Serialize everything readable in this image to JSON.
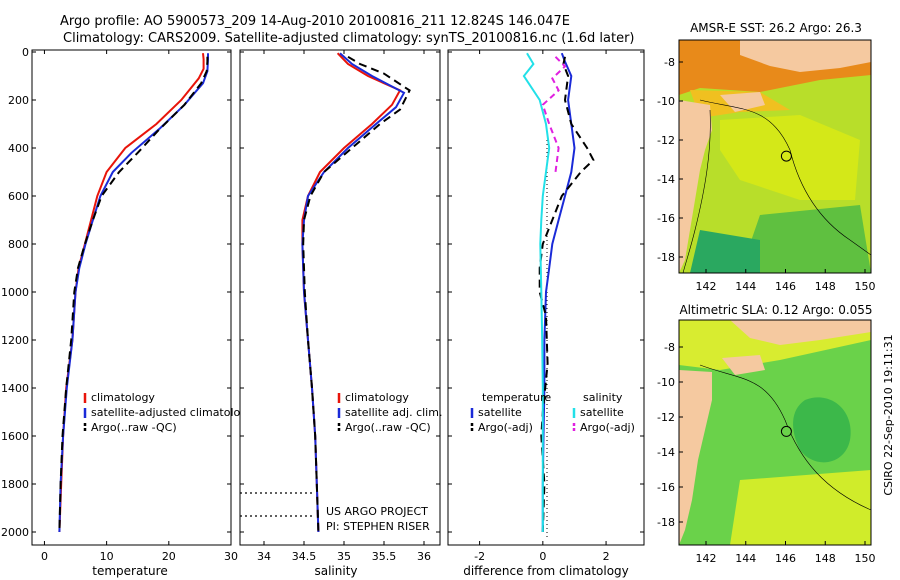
{
  "header": {
    "line1": "Argo profile: AO 5900573_209 14-Aug-2010 20100816_211 12.824S 146.047E",
    "line2": "Climatology: CARS2009. Satellite-adjusted climatology: synTS_20100816.nc (1.6d later)"
  },
  "colors": {
    "climatology": "#e8140a",
    "satellite": "#1a2ad8",
    "argo": "#000000",
    "sal_satellite": "#22e0e8",
    "sal_argo": "#e020e0",
    "land": "#f5c9a0"
  },
  "chart_data": [
    {
      "type": "line",
      "name": "temperature-profile",
      "xlabel": "temperature",
      "ylabel": "",
      "xlim": [
        -2,
        30
      ],
      "ylim": [
        2050,
        0
      ],
      "xticks": [
        0,
        10,
        20,
        30
      ],
      "yticks": [
        0,
        200,
        400,
        600,
        800,
        1000,
        1200,
        1400,
        1600,
        1800,
        2000
      ],
      "legend": [
        "climatology",
        "satellite-adjusted climatology",
        "Argo(..raw -QC)"
      ],
      "series": [
        {
          "name": "climatology",
          "color": "#e8140a",
          "dash": "",
          "points": [
            [
              25.5,
              5
            ],
            [
              25.6,
              30
            ],
            [
              25.6,
              70
            ],
            [
              24.8,
              110
            ],
            [
              22,
              200
            ],
            [
              18,
              300
            ],
            [
              13,
              400
            ],
            [
              10,
              500
            ],
            [
              8.5,
              600
            ],
            [
              7.5,
              700
            ],
            [
              6.5,
              800
            ],
            [
              5.5,
              900
            ],
            [
              5,
              1000
            ],
            [
              4.5,
              1200
            ],
            [
              3.5,
              1400
            ],
            [
              3.0,
              1600
            ],
            [
              2.7,
              1800
            ],
            [
              2.4,
              2000
            ]
          ]
        },
        {
          "name": "satellite-adjusted climatology",
          "color": "#1a2ad8",
          "dash": "",
          "points": [
            [
              26.3,
              5
            ],
            [
              26.3,
              30
            ],
            [
              26.2,
              80
            ],
            [
              25.5,
              130
            ],
            [
              22.5,
              220
            ],
            [
              18.5,
              320
            ],
            [
              14,
              420
            ],
            [
              11,
              500
            ],
            [
              9,
              600
            ],
            [
              7.8,
              700
            ],
            [
              6.6,
              800
            ],
            [
              5.6,
              900
            ],
            [
              5,
              1000
            ],
            [
              4.5,
              1200
            ],
            [
              3.6,
              1400
            ],
            [
              3.0,
              1600
            ],
            [
              2.6,
              1800
            ],
            [
              2.4,
              2000
            ]
          ]
        },
        {
          "name": "Argo(..raw -QC)",
          "color": "#000000",
          "dash": "8,5",
          "points": [
            [
              26.2,
              20
            ],
            [
              26.2,
              40
            ],
            [
              26.1,
              80
            ],
            [
              25.2,
              130
            ],
            [
              22.5,
              220
            ],
            [
              18.2,
              330
            ],
            [
              15,
              420
            ],
            [
              12,
              500
            ],
            [
              9.2,
              600
            ],
            [
              7.8,
              700
            ],
            [
              6.5,
              800
            ],
            [
              5.4,
              900
            ],
            [
              4.8,
              1000
            ],
            [
              4.3,
              1200
            ],
            [
              3.5,
              1400
            ],
            [
              2.9,
              1600
            ],
            [
              2.6,
              1800
            ],
            [
              2.4,
              2000
            ]
          ]
        }
      ]
    },
    {
      "type": "line",
      "name": "salinity-profile",
      "xlabel": "salinity",
      "xlim": [
        33.7,
        36.2
      ],
      "ylim": [
        2050,
        0
      ],
      "xticks": [
        34,
        34.5,
        35,
        35.5,
        36
      ],
      "xticklabels": [
        "34",
        "34.5",
        "35",
        "35.5",
        "36"
      ],
      "legend": [
        "climatology",
        "satellite adj. clim.",
        "Argo(..raw -QC)"
      ],
      "annotations": [
        "US ARGO PROJECT",
        "PI: STEPHEN RISER"
      ],
      "series": [
        {
          "name": "climatology",
          "color": "#e8140a",
          "dash": "",
          "points": [
            [
              34.92,
              5
            ],
            [
              35.05,
              50
            ],
            [
              35.3,
              100
            ],
            [
              35.7,
              160
            ],
            [
              35.6,
              220
            ],
            [
              35.35,
              300
            ],
            [
              35.0,
              400
            ],
            [
              34.7,
              500
            ],
            [
              34.55,
              600
            ],
            [
              34.48,
              700
            ],
            [
              34.48,
              800
            ],
            [
              34.49,
              900
            ],
            [
              34.5,
              1000
            ],
            [
              34.55,
              1200
            ],
            [
              34.6,
              1400
            ],
            [
              34.64,
              1600
            ],
            [
              34.66,
              1800
            ],
            [
              34.68,
              2000
            ]
          ]
        },
        {
          "name": "satellite adj. clim.",
          "color": "#1a2ad8",
          "dash": "",
          "points": [
            [
              34.95,
              5
            ],
            [
              35.1,
              50
            ],
            [
              35.35,
              100
            ],
            [
              35.75,
              170
            ],
            [
              35.65,
              230
            ],
            [
              35.4,
              300
            ],
            [
              35.05,
              400
            ],
            [
              34.75,
              500
            ],
            [
              34.55,
              600
            ],
            [
              34.5,
              700
            ],
            [
              34.48,
              800
            ],
            [
              34.49,
              900
            ],
            [
              34.5,
              1000
            ],
            [
              34.55,
              1200
            ],
            [
              34.6,
              1400
            ],
            [
              34.64,
              1600
            ],
            [
              34.66,
              1800
            ],
            [
              34.68,
              2000
            ]
          ]
        },
        {
          "name": "Argo(..raw -QC)",
          "color": "#000000",
          "dash": "8,5",
          "points": [
            [
              35.05,
              20
            ],
            [
              35.2,
              50
            ],
            [
              35.5,
              90
            ],
            [
              35.82,
              160
            ],
            [
              35.7,
              240
            ],
            [
              35.45,
              300
            ],
            [
              35.1,
              400
            ],
            [
              34.75,
              500
            ],
            [
              34.58,
              600
            ],
            [
              34.5,
              700
            ],
            [
              34.49,
              800
            ],
            [
              34.5,
              900
            ],
            [
              34.51,
              1000
            ],
            [
              34.55,
              1200
            ],
            [
              34.6,
              1400
            ],
            [
              34.64,
              1600
            ],
            [
              34.66,
              1800
            ],
            [
              34.68,
              2000
            ]
          ]
        }
      ]
    },
    {
      "type": "line",
      "name": "difference-profile",
      "xlabel": "difference from climatology",
      "xlim": [
        -3,
        3.2
      ],
      "ylim": [
        2050,
        0
      ],
      "xticks": [
        -2,
        0,
        2
      ],
      "legend_temperature": [
        "temperature",
        "satellite",
        "Argo(-adj)"
      ],
      "legend_salinity": [
        "salinity",
        "satellite",
        "Argo(-adj)"
      ],
      "series": [
        {
          "name": "temperature satellite",
          "color": "#1a2ad8",
          "dash": "",
          "points": [
            [
              0.6,
              5
            ],
            [
              0.7,
              40
            ],
            [
              0.9,
              100
            ],
            [
              0.8,
              200
            ],
            [
              0.9,
              300
            ],
            [
              1.0,
              400
            ],
            [
              0.9,
              500
            ],
            [
              0.7,
              600
            ],
            [
              0.5,
              700
            ],
            [
              0.3,
              800
            ],
            [
              0.2,
              900
            ],
            [
              0.1,
              1000
            ],
            [
              0.05,
              1200
            ],
            [
              0.05,
              1400
            ],
            [
              0.02,
              1600
            ],
            [
              0.0,
              1800
            ],
            [
              0.0,
              2000
            ]
          ]
        },
        {
          "name": "temperature Argo(-adj)",
          "color": "#000000",
          "dash": "8,5",
          "points": [
            [
              0.7,
              20
            ],
            [
              0.65,
              50
            ],
            [
              0.8,
              100
            ],
            [
              0.7,
              200
            ],
            [
              0.9,
              300
            ],
            [
              1.4,
              400
            ],
            [
              1.6,
              450
            ],
            [
              1.2,
              500
            ],
            [
              0.6,
              600
            ],
            [
              0.3,
              700
            ],
            [
              0.0,
              800
            ],
            [
              -0.1,
              900
            ],
            [
              -0.1,
              1000
            ],
            [
              0.1,
              1100
            ],
            [
              0.15,
              1300
            ],
            [
              0.0,
              1500
            ],
            [
              -0.05,
              1600
            ],
            [
              0.05,
              1800
            ],
            [
              0.0,
              2000
            ]
          ]
        },
        {
          "name": "salinity satellite",
          "color": "#22e0e8",
          "dash": "",
          "points": [
            [
              -0.5,
              5
            ],
            [
              -0.3,
              50
            ],
            [
              -0.6,
              100
            ],
            [
              -0.1,
              200
            ],
            [
              0.1,
              300
            ],
            [
              0.2,
              400
            ],
            [
              0.1,
              500
            ],
            [
              0.0,
              600
            ],
            [
              -0.05,
              700
            ],
            [
              -0.08,
              800
            ],
            [
              -0.05,
              1000
            ],
            [
              -0.02,
              1200
            ],
            [
              0.0,
              1400
            ],
            [
              0.0,
              1600
            ],
            [
              0.0,
              2000
            ]
          ]
        },
        {
          "name": "salinity Argo(-adj)",
          "color": "#e020e0",
          "dash": "6,4",
          "points": [
            [
              0.4,
              20
            ],
            [
              0.7,
              60
            ],
            [
              0.3,
              110
            ],
            [
              0.5,
              160
            ],
            [
              0.0,
              220
            ],
            [
              0.2,
              300
            ],
            [
              0.5,
              400
            ],
            [
              0.4,
              500
            ]
          ]
        }
      ]
    }
  ],
  "maps": [
    {
      "title": "AMSR-E SST: 26.2 Argo: 26.3",
      "xticks": [
        "142",
        "144",
        "146",
        "148",
        "150"
      ],
      "yticks": [
        "-8",
        "-10",
        "-12",
        "-14",
        "-16",
        "-18"
      ],
      "float_marker": {
        "lon": 146.047,
        "lat": -12.824
      },
      "lon_range": [
        140.8,
        151.2
      ],
      "lat_range": [
        -18.8,
        -6.8
      ]
    },
    {
      "title": "Altimetric SLA: 0.12 Argo: 0.055",
      "xticks": [
        "142",
        "144",
        "146",
        "148",
        "150"
      ],
      "yticks": [
        "-8",
        "-10",
        "-12",
        "-14",
        "-16",
        "-18"
      ],
      "float_marker": {
        "lon": 146.047,
        "lat": -12.824
      },
      "lon_range": [
        140.8,
        151.2
      ],
      "lat_range": [
        -18.8,
        -6.8
      ]
    }
  ],
  "footer": {
    "credit": "CSIRO 22-Sep-2010 19:11:31"
  }
}
